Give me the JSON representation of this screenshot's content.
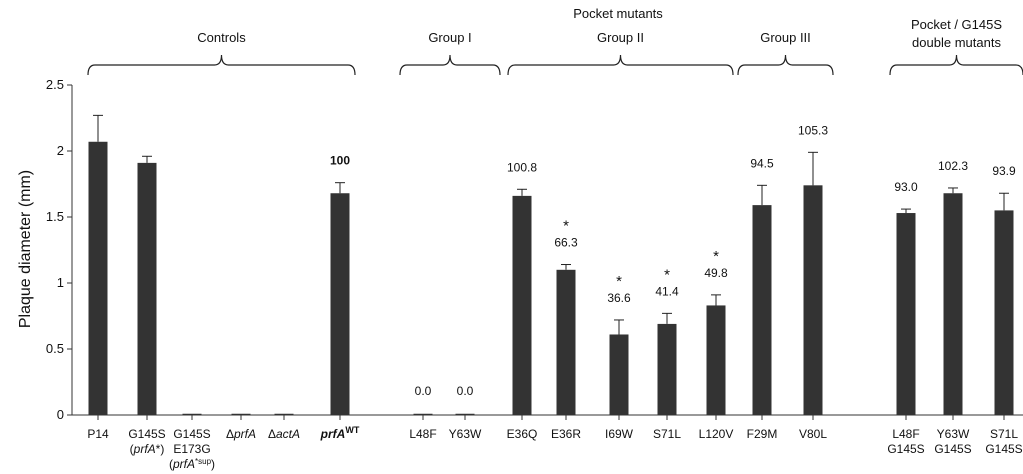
{
  "chart_data": {
    "type": "bar",
    "ylabel": "Plaque diameter (mm)",
    "ylim": [
      0,
      2.5
    ],
    "yticks": [
      "0",
      "0.5",
      "1",
      "1.5",
      "2",
      "2.5"
    ],
    "bar_color": "#333333",
    "categories": [
      {
        "name": "P14",
        "value": 2.07,
        "error": 0.2,
        "label": "",
        "star": false
      },
      {
        "name": "G145S",
        "sub": "(prfA*)",
        "value": 1.91,
        "error": 0.05,
        "label": "",
        "star": false
      },
      {
        "name": "G145S",
        "sub": "E173G",
        "sub2": "(prfA*sup)",
        "value": 0,
        "error": 0,
        "label": "",
        "star": false
      },
      {
        "name": "ΔprfA",
        "value": 0,
        "error": 0,
        "label": "",
        "star": false
      },
      {
        "name": "ΔactA",
        "value": 0,
        "error": 0,
        "label": "",
        "star": false
      },
      {
        "name": "prfA WT",
        "value": 1.68,
        "error": 0.08,
        "label": "100",
        "star": false
      },
      {
        "name": "L48F",
        "value": 0,
        "error": 0,
        "label": "0.0",
        "star": false
      },
      {
        "name": "Y63W",
        "value": 0,
        "error": 0,
        "label": "0.0",
        "star": false
      },
      {
        "name": "E36Q",
        "value": 1.66,
        "error": 0.05,
        "label": "100.8",
        "star": false
      },
      {
        "name": "E36R",
        "value": 1.1,
        "error": 0.04,
        "label": "66.3",
        "star": true
      },
      {
        "name": "I69W",
        "value": 0.61,
        "error": 0.11,
        "label": "36.6",
        "star": true
      },
      {
        "name": "S71L",
        "value": 0.69,
        "error": 0.08,
        "label": "41.4",
        "star": true
      },
      {
        "name": "L120V",
        "value": 0.83,
        "error": 0.08,
        "label": "49.8",
        "star": true
      },
      {
        "name": "F29M",
        "value": 1.59,
        "error": 0.15,
        "label": "94.5",
        "star": false
      },
      {
        "name": "V80L",
        "value": 1.74,
        "error": 0.25,
        "label": "105.3",
        "star": false
      },
      {
        "name": "L48F",
        "sub": "G145S",
        "value": 1.53,
        "error": 0.03,
        "label": "93.0",
        "star": false
      },
      {
        "name": "Y63W",
        "sub": "G145S",
        "value": 1.68,
        "error": 0.04,
        "label": "102.3",
        "star": false
      },
      {
        "name": "S71L",
        "sub": "G145S",
        "value": 1.55,
        "error": 0.13,
        "label": "93.9",
        "star": false
      }
    ],
    "groups": [
      {
        "label": "Controls",
        "from": 0,
        "to": 5
      },
      {
        "label": "Group I",
        "from": 6,
        "to": 7
      },
      {
        "label": "Group II",
        "from": 8,
        "to": 12
      },
      {
        "label": "Group III",
        "from": 13,
        "to": 14
      },
      {
        "label": "Pocket / G145S",
        "label2": "double mutants",
        "from": 15,
        "to": 17
      }
    ],
    "supergroup": {
      "label": "Pocket mutants",
      "from": 6,
      "to": 14
    }
  }
}
